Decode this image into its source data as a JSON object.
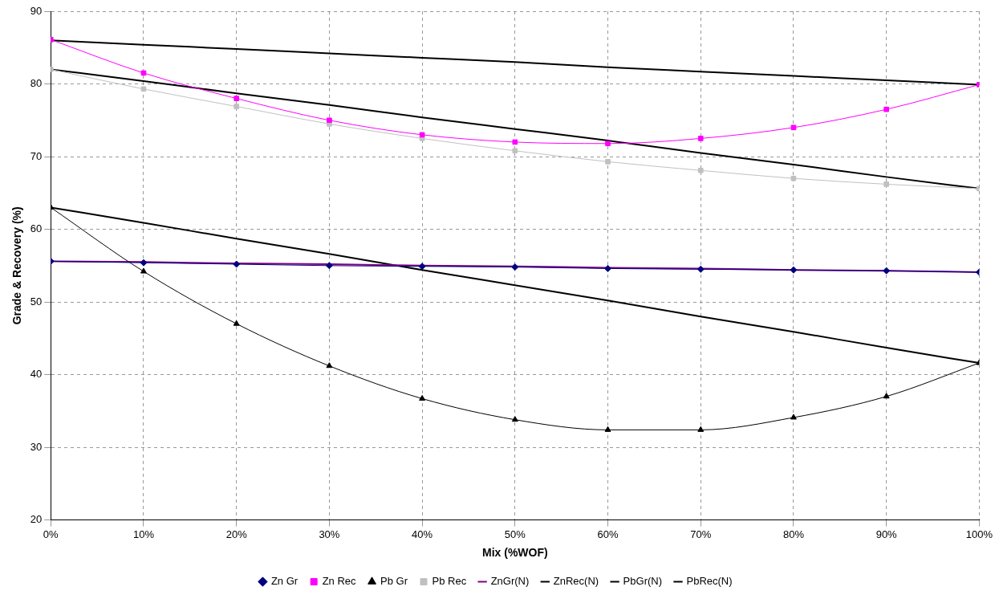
{
  "chart_data": {
    "type": "line",
    "xlabel": "Mix (%WOF)",
    "ylabel": "Grade & Recovery (%)",
    "x": [
      0,
      10,
      20,
      30,
      40,
      50,
      60,
      70,
      80,
      90,
      100
    ],
    "xlim": [
      0,
      100
    ],
    "xticks": [
      {
        "value": 0,
        "label": "0%"
      },
      {
        "value": 10,
        "label": "10%"
      },
      {
        "value": 20,
        "label": "20%"
      },
      {
        "value": 30,
        "label": "30%"
      },
      {
        "value": 40,
        "label": "40%"
      },
      {
        "value": 50,
        "label": "50%"
      },
      {
        "value": 60,
        "label": "60%"
      },
      {
        "value": 70,
        "label": "70%"
      },
      {
        "value": 80,
        "label": "80%"
      },
      {
        "value": 90,
        "label": "90%"
      },
      {
        "value": 100,
        "label": "100%"
      }
    ],
    "ylim": [
      20,
      90
    ],
    "yticks": [
      20,
      30,
      40,
      50,
      60,
      70,
      80,
      90
    ],
    "grid": true,
    "legend": "bottom",
    "series": [
      {
        "name": "Zn Gr",
        "color": "#000080",
        "marker": "diamond",
        "values": [
          55.6,
          55.4,
          55.2,
          55.0,
          54.9,
          54.8,
          54.6,
          54.5,
          54.4,
          54.3,
          54.1
        ]
      },
      {
        "name": "Zn Rec",
        "color": "#ff00ff",
        "marker": "square",
        "values": [
          86.1,
          81.5,
          78.0,
          75.0,
          73.0,
          72.0,
          71.8,
          72.5,
          74.0,
          76.5,
          79.9
        ]
      },
      {
        "name": "Pb Gr",
        "color": "#000000",
        "marker": "triangle",
        "values": [
          63.0,
          54.2,
          47.0,
          41.2,
          36.7,
          33.8,
          32.4,
          32.4,
          34.1,
          37.0,
          41.6
        ]
      },
      {
        "name": "Pb Rec",
        "color": "#c0c0c0",
        "marker": "square",
        "values": [
          82.0,
          79.3,
          76.9,
          74.5,
          72.5,
          70.8,
          69.3,
          68.1,
          67.0,
          66.2,
          65.6
        ]
      },
      {
        "name": "ZnGr(N)",
        "color": "#800080",
        "marker": "none",
        "values": [
          55.6,
          55.5,
          55.3,
          55.2,
          55.0,
          54.9,
          54.7,
          54.6,
          54.4,
          54.3,
          54.1
        ]
      },
      {
        "name": "ZnRec(N)",
        "color": "#000000",
        "marker": "none",
        "values": [
          86.0,
          85.4,
          84.8,
          84.2,
          83.6,
          83.0,
          82.3,
          81.7,
          81.1,
          80.5,
          79.9
        ]
      },
      {
        "name": "PbGr(N)",
        "color": "#000000",
        "marker": "none",
        "values": [
          63.0,
          60.9,
          58.7,
          56.6,
          54.4,
          52.3,
          50.2,
          48.0,
          45.9,
          43.7,
          41.6
        ]
      },
      {
        "name": "PbRec(N)",
        "color": "#000000",
        "marker": "none",
        "values": [
          82.0,
          80.4,
          78.7,
          77.1,
          75.4,
          73.8,
          72.2,
          70.5,
          68.9,
          67.2,
          65.6
        ]
      }
    ]
  }
}
